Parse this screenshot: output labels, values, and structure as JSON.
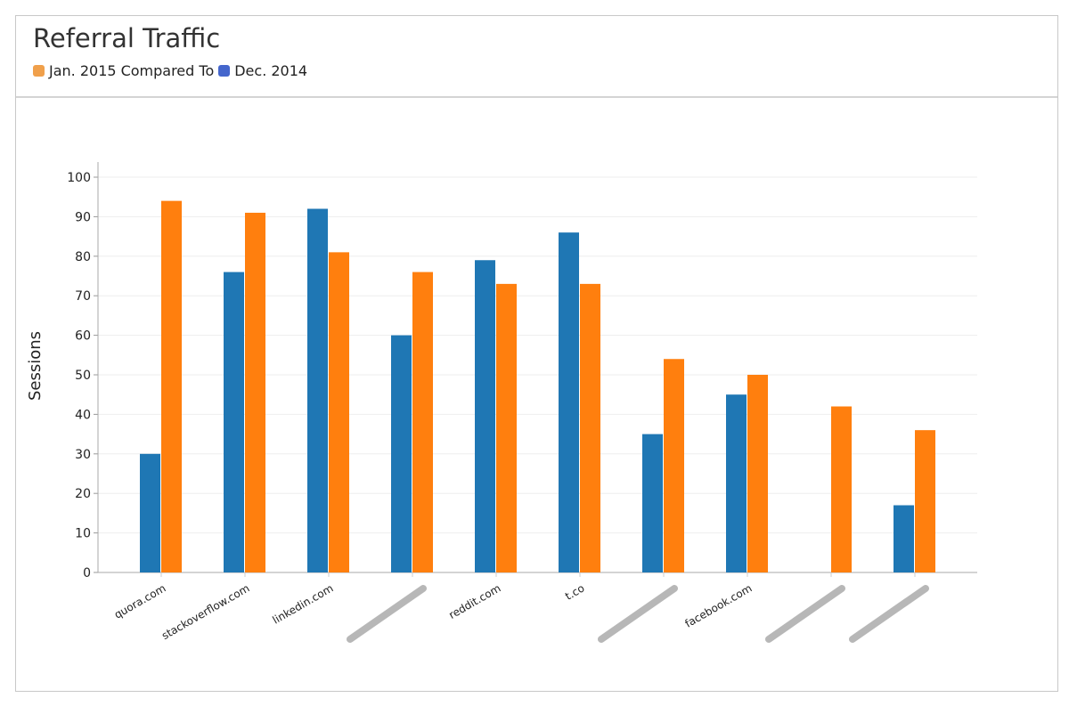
{
  "header": {
    "title": "Referral Traffic",
    "legend_a": "Jan. 2015",
    "compared": "Compared To",
    "legend_b": "Dec. 2014",
    "color_a": "#f0a04b",
    "color_b": "#4466cc"
  },
  "chart_data": {
    "type": "bar",
    "title": "Referral Traffic",
    "ylabel": "Sessions",
    "xlabel": "",
    "ylim": [
      0,
      100
    ],
    "yticks": [
      0,
      10,
      20,
      30,
      40,
      50,
      60,
      70,
      80,
      90,
      100
    ],
    "grid": true,
    "categories": [
      "quora.com",
      "stackoverflow.com",
      "linkedin.com",
      "",
      "reddit.com",
      "t.co",
      "",
      "facebook.com",
      "",
      ""
    ],
    "series": [
      {
        "name": "Dec. 2014",
        "color": "#1f77b4",
        "values": [
          30,
          76,
          92,
          60,
          79,
          86,
          35,
          45,
          0,
          17
        ]
      },
      {
        "name": "Jan. 2015",
        "color": "#ff7f0e",
        "values": [
          94,
          91,
          81,
          76,
          73,
          73,
          54,
          50,
          42,
          36
        ]
      }
    ]
  }
}
